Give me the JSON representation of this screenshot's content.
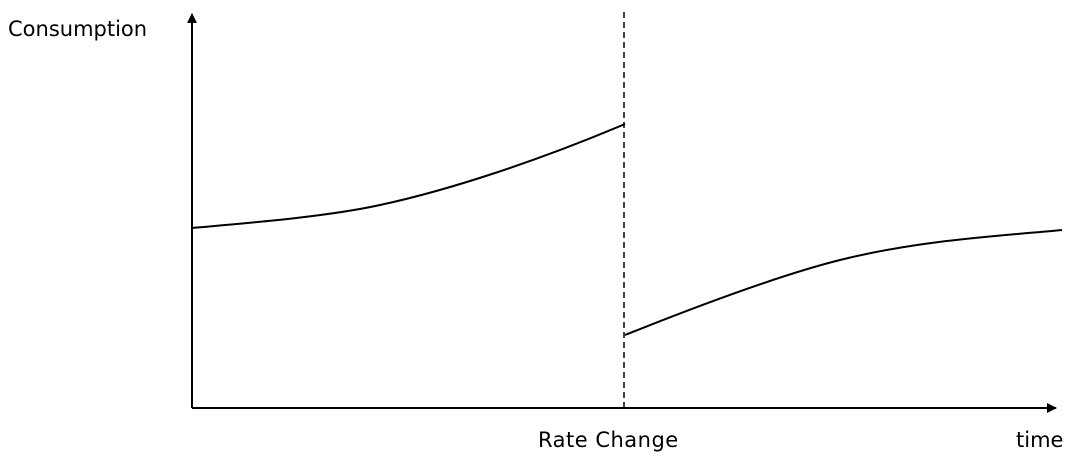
{
  "diagram": {
    "y_axis_label": "Consumption",
    "x_axis_label": "time",
    "marker_label": "Rate Change"
  },
  "colors": {
    "line": "#000000",
    "background": "#ffffff"
  }
}
